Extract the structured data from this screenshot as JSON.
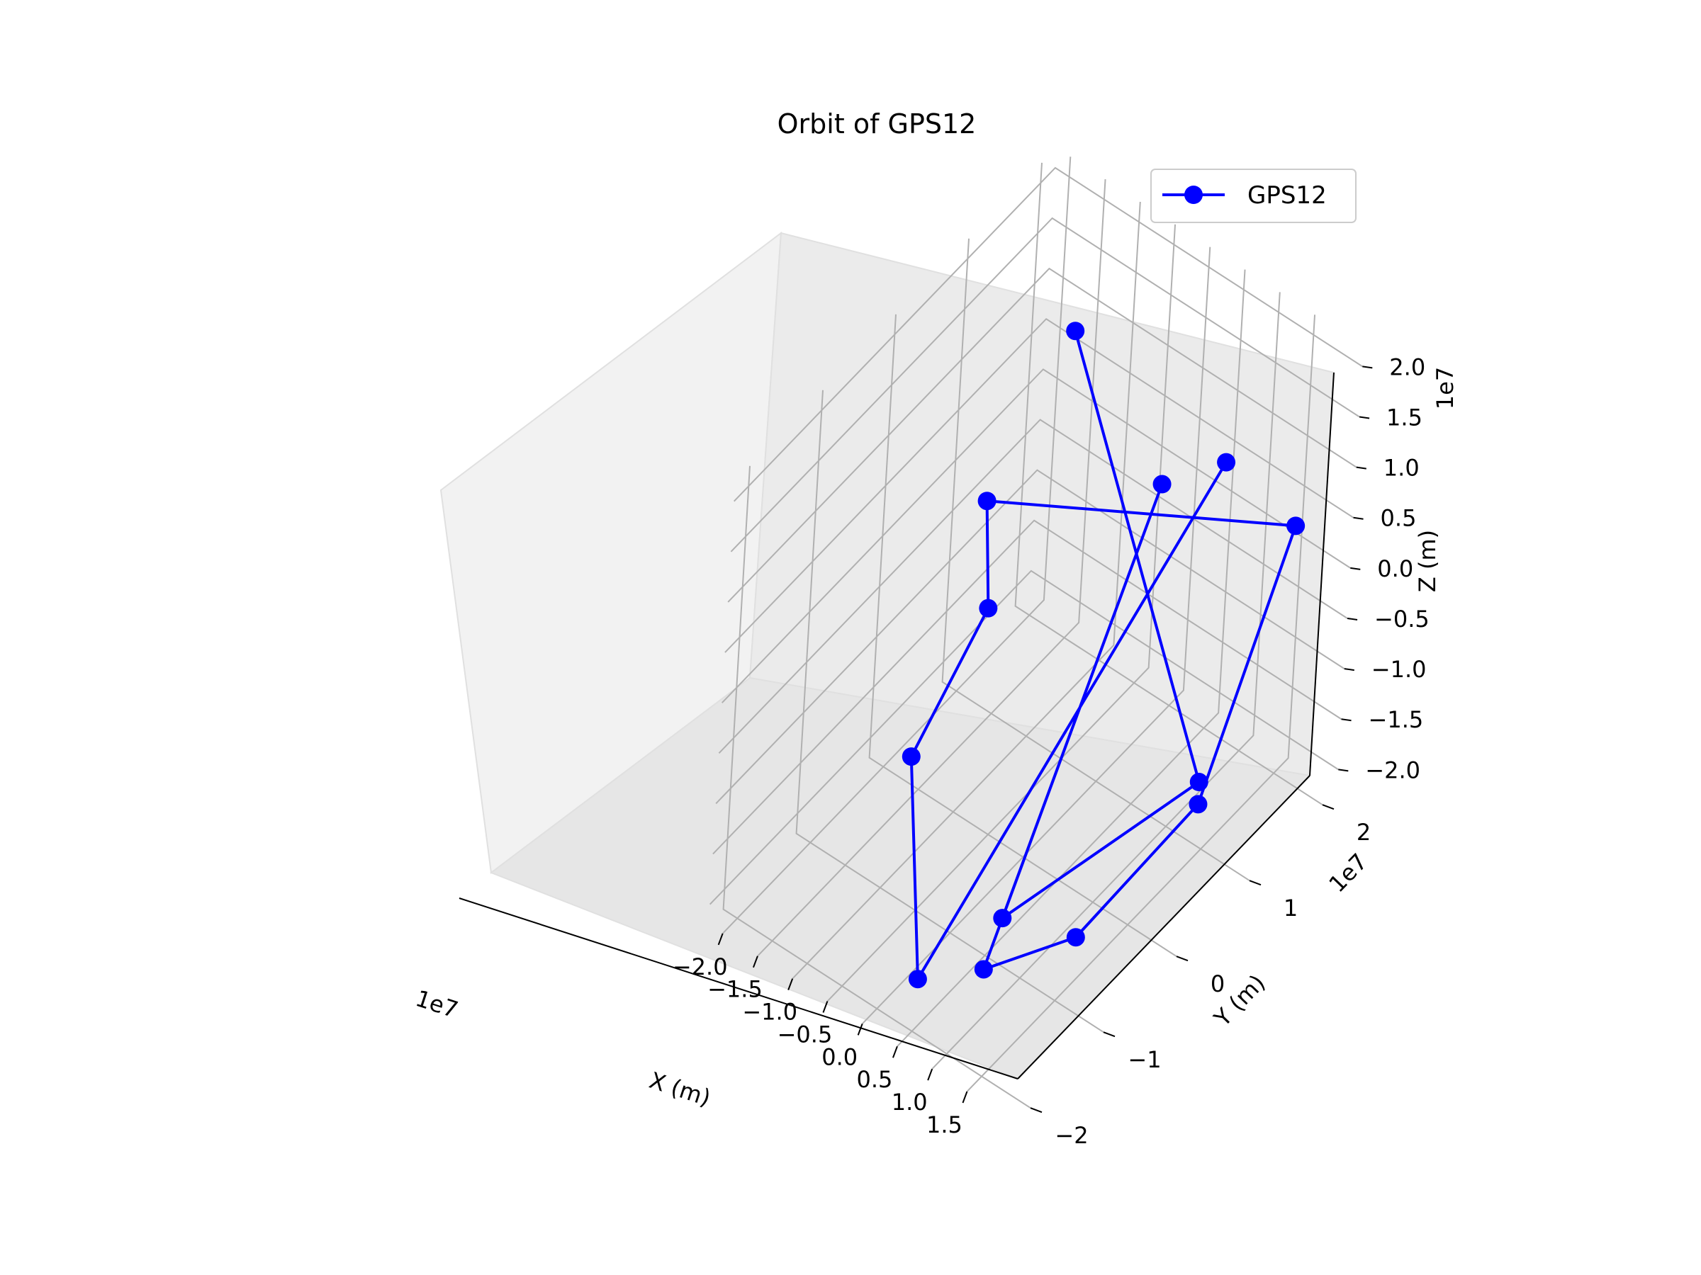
{
  "chart_data": {
    "type": "scatter3d",
    "title": "Orbit of GPS12",
    "xlabel": "X (m)",
    "ylabel": "Y (m)",
    "zlabel": "Z (m)",
    "x_offset": "1e7",
    "y_offset": "1e7",
    "z_offset": "1e7",
    "x_ticks": [
      "−2.0",
      "−1.5",
      "−1.0",
      "−0.5",
      "0.0",
      "0.5",
      "1.0",
      "1.5"
    ],
    "y_ticks": [
      "−2",
      "−1",
      "0",
      "1",
      "2"
    ],
    "z_ticks": [
      "−2.0",
      "−1.5",
      "−1.0",
      "−0.5",
      "0.0",
      "0.5",
      "1.0",
      "1.5",
      "2.0"
    ],
    "legend_position": "top-right",
    "grid": true,
    "series": [
      {
        "name": "GPS12",
        "color": "#0000ff",
        "marker": "circle",
        "points": [
          {
            "x": 1.25,
            "y": 1.3,
            "z": 1.3
          },
          {
            "x": 0.35,
            "y": -1.8,
            "z": -1.9
          },
          {
            "x": -2.0,
            "y": 0.4,
            "z": -2.4
          },
          {
            "x": -2.1,
            "y": 1.5,
            "z": -1.8
          },
          {
            "x": -2.3,
            "y": 1.6,
            "z": -0.9
          },
          {
            "x": 1.6,
            "y": 2.0,
            "z": 0.3
          },
          {
            "x": 1.9,
            "y": 0.5,
            "z": -1.2
          },
          {
            "x": 1.55,
            "y": -0.8,
            "z": -1.7
          },
          {
            "x": 1.25,
            "y": -1.8,
            "z": -1.4
          },
          {
            "x": 0.95,
            "y": 0.7,
            "z": 1.4
          },
          {
            "x": 0.9,
            "y": -1.2,
            "z": -1.5
          },
          {
            "x": 1.8,
            "y": 0.6,
            "z": -1.1
          },
          {
            "x": -1.6,
            "y": 2.0,
            "z": 0.8
          }
        ]
      }
    ]
  }
}
